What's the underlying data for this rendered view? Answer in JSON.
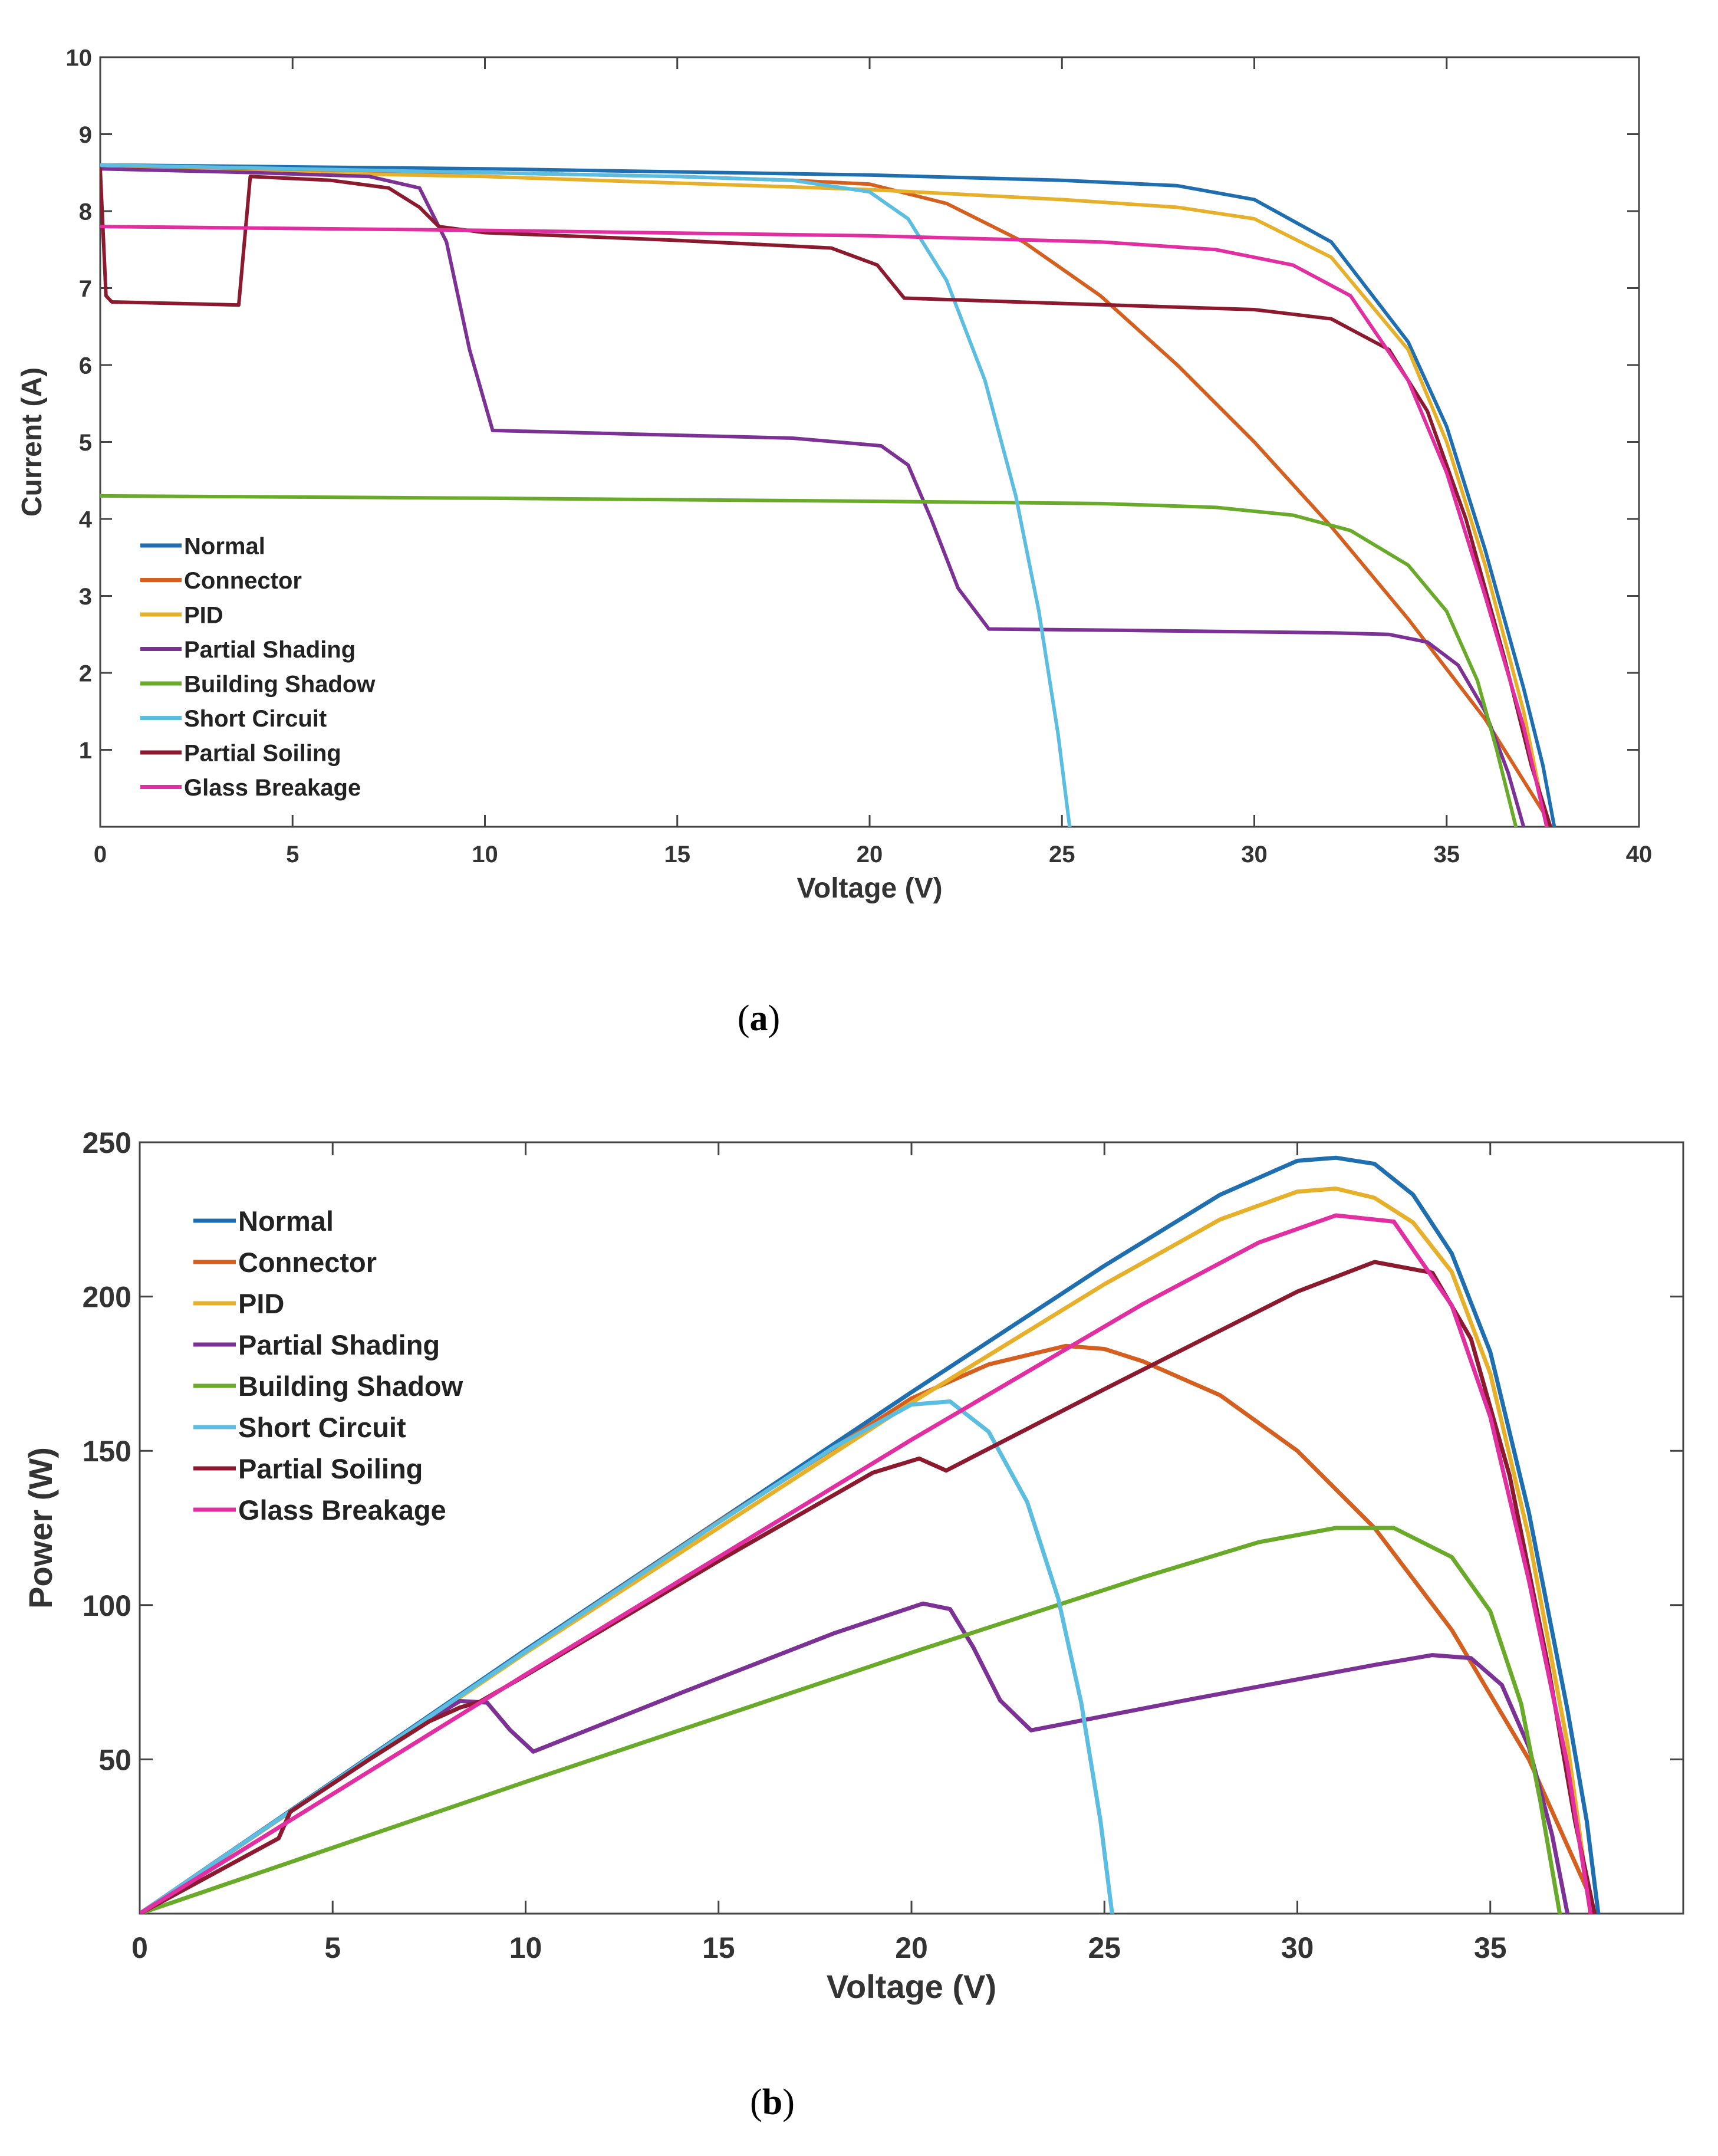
{
  "chart_data": [
    {
      "type": "line",
      "caption_letter": "a",
      "xlabel": "Voltage (V)",
      "ylabel": "Current (A)",
      "xlim": [
        0,
        40
      ],
      "ylim": [
        0,
        10
      ],
      "xticks": [
        0,
        5,
        10,
        15,
        20,
        25,
        30,
        35,
        40
      ],
      "yticks": [
        1,
        2,
        3,
        4,
        5,
        6,
        7,
        8,
        9,
        10
      ],
      "grid": false,
      "legend_position": "bottom-left",
      "series": [
        {
          "name": "Normal",
          "color": "#1f6fb0",
          "points": [
            [
              0,
              8.6
            ],
            [
              10,
              8.55
            ],
            [
              20,
              8.47
            ],
            [
              25,
              8.4
            ],
            [
              28,
              8.33
            ],
            [
              30,
              8.15
            ],
            [
              32,
              7.6
            ],
            [
              34,
              6.3
            ],
            [
              35,
              5.2
            ],
            [
              36,
              3.6
            ],
            [
              37,
              1.8
            ],
            [
              37.5,
              0.8
            ],
            [
              37.8,
              0
            ]
          ]
        },
        {
          "name": "Connector",
          "color": "#d45f1f",
          "points": [
            [
              0,
              8.55
            ],
            [
              10,
              8.5
            ],
            [
              15,
              8.45
            ],
            [
              18,
              8.4
            ],
            [
              20,
              8.35
            ],
            [
              22,
              8.1
            ],
            [
              24,
              7.6
            ],
            [
              26,
              6.9
            ],
            [
              28,
              6.0
            ],
            [
              30,
              5.0
            ],
            [
              32,
              3.9
            ],
            [
              34,
              2.7
            ],
            [
              36,
              1.4
            ],
            [
              37.5,
              0.2
            ],
            [
              37.7,
              0
            ]
          ]
        },
        {
          "name": "PID",
          "color": "#e6b02a",
          "points": [
            [
              0,
              8.55
            ],
            [
              10,
              8.45
            ],
            [
              20,
              8.28
            ],
            [
              25,
              8.15
            ],
            [
              28,
              8.05
            ],
            [
              30,
              7.9
            ],
            [
              32,
              7.4
            ],
            [
              34,
              6.2
            ],
            [
              35,
              5.0
            ],
            [
              36,
              3.4
            ],
            [
              37,
              1.5
            ],
            [
              37.6,
              0
            ]
          ]
        },
        {
          "name": "Partial Shading",
          "color": "#7b3294",
          "points": [
            [
              0,
              8.55
            ],
            [
              4,
              8.5
            ],
            [
              7,
              8.45
            ],
            [
              8.3,
              8.3
            ],
            [
              9,
              7.6
            ],
            [
              9.6,
              6.2
            ],
            [
              10.2,
              5.15
            ],
            [
              14,
              5.1
            ],
            [
              18,
              5.05
            ],
            [
              20.3,
              4.95
            ],
            [
              21,
              4.7
            ],
            [
              21.6,
              4.0
            ],
            [
              22.3,
              3.1
            ],
            [
              23.1,
              2.57
            ],
            [
              27,
              2.55
            ],
            [
              32,
              2.52
            ],
            [
              33.5,
              2.5
            ],
            [
              34.5,
              2.4
            ],
            [
              35.3,
              2.1
            ],
            [
              36,
              1.5
            ],
            [
              36.6,
              0.7
            ],
            [
              37,
              0
            ]
          ]
        },
        {
          "name": "Building Shadow",
          "color": "#6aaa2b",
          "points": [
            [
              0,
              4.3
            ],
            [
              10,
              4.27
            ],
            [
              20,
              4.23
            ],
            [
              26,
              4.2
            ],
            [
              29,
              4.15
            ],
            [
              31,
              4.05
            ],
            [
              32.5,
              3.85
            ],
            [
              34,
              3.4
            ],
            [
              35,
              2.8
            ],
            [
              35.8,
              1.9
            ],
            [
              36.3,
              1.0
            ],
            [
              36.8,
              0
            ]
          ]
        },
        {
          "name": "Short Circuit",
          "color": "#5bbee0",
          "points": [
            [
              0,
              8.6
            ],
            [
              10,
              8.5
            ],
            [
              15,
              8.45
            ],
            [
              18,
              8.4
            ],
            [
              20,
              8.25
            ],
            [
              21,
              7.9
            ],
            [
              22,
              7.1
            ],
            [
              23,
              5.8
            ],
            [
              23.8,
              4.3
            ],
            [
              24.4,
              2.8
            ],
            [
              24.9,
              1.2
            ],
            [
              25.2,
              0
            ]
          ]
        },
        {
          "name": "Partial Soiling",
          "color": "#8b1a2e",
          "points": [
            [
              0,
              8.55
            ],
            [
              0.15,
              6.9
            ],
            [
              0.3,
              6.82
            ],
            [
              2,
              6.8
            ],
            [
              3.6,
              6.78
            ],
            [
              3.9,
              8.45
            ],
            [
              6,
              8.4
            ],
            [
              7.5,
              8.3
            ],
            [
              8.3,
              8.05
            ],
            [
              8.8,
              7.8
            ],
            [
              10,
              7.72
            ],
            [
              15,
              7.62
            ],
            [
              19,
              7.52
            ],
            [
              20.2,
              7.3
            ],
            [
              20.9,
              6.87
            ],
            [
              25,
              6.8
            ],
            [
              30,
              6.72
            ],
            [
              32,
              6.6
            ],
            [
              33.5,
              6.2
            ],
            [
              34.5,
              5.4
            ],
            [
              35.5,
              4.0
            ],
            [
              36.5,
              2.2
            ],
            [
              37.2,
              0.8
            ],
            [
              37.7,
              0
            ]
          ]
        },
        {
          "name": "Glass Breakage",
          "color": "#e12ea0",
          "points": [
            [
              0,
              7.8
            ],
            [
              10,
              7.75
            ],
            [
              20,
              7.68
            ],
            [
              26,
              7.6
            ],
            [
              29,
              7.5
            ],
            [
              31,
              7.3
            ],
            [
              32.5,
              6.9
            ],
            [
              34,
              5.8
            ],
            [
              35,
              4.6
            ],
            [
              36,
              3.0
            ],
            [
              37,
              1.3
            ],
            [
              37.6,
              0
            ]
          ]
        }
      ]
    },
    {
      "type": "line",
      "caption_letter": "b",
      "xlabel": "Voltage (V)",
      "ylabel": "Power (W)",
      "xlim": [
        0,
        40
      ],
      "ylim": [
        0,
        250
      ],
      "xticks": [
        0,
        5,
        10,
        15,
        20,
        25,
        30,
        35
      ],
      "yticks": [
        50,
        100,
        150,
        200,
        250
      ],
      "grid": false,
      "legend_position": "top-left",
      "series": [
        {
          "name": "Normal",
          "color": "#1f6fb0",
          "points": [
            [
              0,
              0
            ],
            [
              10,
              85.5
            ],
            [
              20,
              169
            ],
            [
              25,
              210
            ],
            [
              28,
              233
            ],
            [
              30,
              244
            ],
            [
              31,
              245
            ],
            [
              32,
              243
            ],
            [
              33,
              233
            ],
            [
              34,
              214
            ],
            [
              35,
              182
            ],
            [
              36,
              130
            ],
            [
              37,
              66
            ],
            [
              37.5,
              30
            ],
            [
              37.8,
              0
            ]
          ]
        },
        {
          "name": "Connector",
          "color": "#d45f1f",
          "points": [
            [
              0,
              0
            ],
            [
              10,
              85
            ],
            [
              15,
              127
            ],
            [
              20,
              167
            ],
            [
              22,
              178
            ],
            [
              24,
              184
            ],
            [
              25,
              183
            ],
            [
              26,
              179
            ],
            [
              28,
              168
            ],
            [
              30,
              150
            ],
            [
              32,
              125
            ],
            [
              34,
              92
            ],
            [
              36,
              50
            ],
            [
              37.5,
              8
            ],
            [
              37.7,
              0
            ]
          ]
        },
        {
          "name": "PID",
          "color": "#e6b02a",
          "points": [
            [
              0,
              0
            ],
            [
              10,
              84.5
            ],
            [
              20,
              165.6
            ],
            [
              25,
              204
            ],
            [
              28,
              225
            ],
            [
              30,
              234
            ],
            [
              31,
              235
            ],
            [
              32,
              232
            ],
            [
              33,
              224
            ],
            [
              34,
              208
            ],
            [
              35,
              175
            ],
            [
              36,
              122
            ],
            [
              37,
              55
            ],
            [
              37.6,
              0
            ]
          ]
        },
        {
          "name": "Partial Shading",
          "color": "#7b3294",
          "points": [
            [
              0,
              0
            ],
            [
              4,
              34
            ],
            [
              7,
              59
            ],
            [
              8.3,
              68.9
            ],
            [
              9,
              68.4
            ],
            [
              9.6,
              59.5
            ],
            [
              10.2,
              52.5
            ],
            [
              14,
              71.4
            ],
            [
              18,
              90.9
            ],
            [
              20.3,
              100.5
            ],
            [
              21,
              98.7
            ],
            [
              21.6,
              86.4
            ],
            [
              22.3,
              69.1
            ],
            [
              23.1,
              59.4
            ],
            [
              27,
              68.9
            ],
            [
              32,
              80.6
            ],
            [
              33.5,
              83.8
            ],
            [
              34.5,
              82.8
            ],
            [
              35.3,
              74.1
            ],
            [
              36,
              54
            ],
            [
              36.6,
              25.6
            ],
            [
              37,
              0
            ]
          ]
        },
        {
          "name": "Building Shadow",
          "color": "#6aaa2b",
          "points": [
            [
              0,
              0
            ],
            [
              10,
              42.7
            ],
            [
              20,
              84.6
            ],
            [
              26,
              109
            ],
            [
              29,
              120.4
            ],
            [
              31,
              125
            ],
            [
              32.5,
              125
            ],
            [
              34,
              115.6
            ],
            [
              35,
              98
            ],
            [
              35.8,
              68
            ],
            [
              36.3,
              36.3
            ],
            [
              36.8,
              0
            ]
          ]
        },
        {
          "name": "Short Circuit",
          "color": "#5bbee0",
          "points": [
            [
              0,
              0
            ],
            [
              10,
              85
            ],
            [
              15,
              126.8
            ],
            [
              18,
              151.2
            ],
            [
              20,
              165
            ],
            [
              21,
              166
            ],
            [
              22,
              156.2
            ],
            [
              23,
              133.4
            ],
            [
              23.8,
              102.3
            ],
            [
              24.4,
              68.3
            ],
            [
              24.9,
              29.9
            ],
            [
              25.2,
              0
            ]
          ]
        },
        {
          "name": "Partial Soiling",
          "color": "#8b1a2e",
          "points": [
            [
              0,
              0
            ],
            [
              3.6,
              24.4
            ],
            [
              3.9,
              33
            ],
            [
              6,
              50.4
            ],
            [
              7.5,
              62.3
            ],
            [
              8.3,
              66.8
            ],
            [
              8.8,
              68.6
            ],
            [
              10,
              77.2
            ],
            [
              15,
              114.3
            ],
            [
              19,
              142.9
            ],
            [
              20.2,
              147.5
            ],
            [
              20.9,
              143.6
            ],
            [
              25,
              170
            ],
            [
              30,
              201.6
            ],
            [
              32,
              211.2
            ],
            [
              33.5,
              207.7
            ],
            [
              34.5,
              186.3
            ],
            [
              35.5,
              142
            ],
            [
              36.5,
              80.3
            ],
            [
              37.2,
              29.8
            ],
            [
              37.7,
              0
            ]
          ]
        },
        {
          "name": "Glass Breakage",
          "color": "#e12ea0",
          "points": [
            [
              0,
              0
            ],
            [
              10,
              77.5
            ],
            [
              20,
              153.6
            ],
            [
              26,
              197.6
            ],
            [
              29,
              217.5
            ],
            [
              31,
              226.3
            ],
            [
              32.5,
              224.3
            ],
            [
              34,
              197.2
            ],
            [
              35,
              161
            ],
            [
              36,
              108
            ],
            [
              37,
              48.1
            ],
            [
              37.6,
              0
            ]
          ]
        }
      ]
    }
  ]
}
